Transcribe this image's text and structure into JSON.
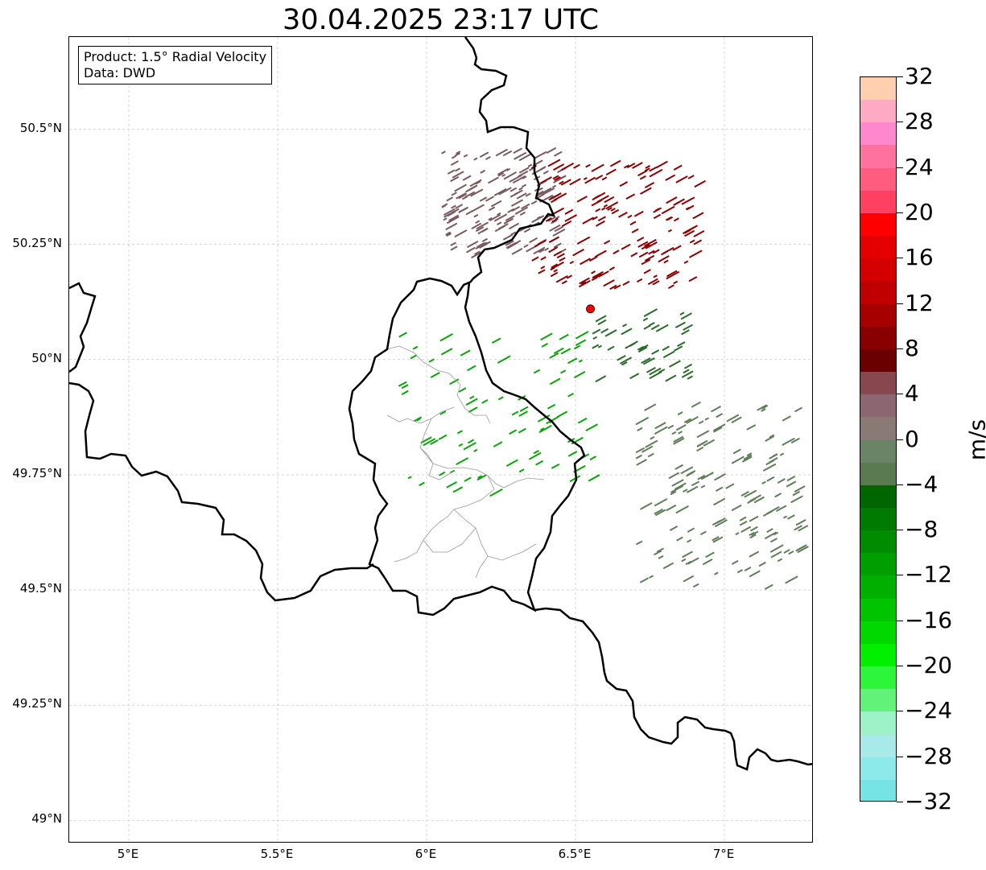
{
  "title": "30.04.2025 23:17 UTC",
  "info": {
    "line1": "Product: 1.5° Radial Velocity",
    "line2": "Data: DWD"
  },
  "lat_ticks": [
    "50.5°N",
    "50.25°N",
    "50°N",
    "49.75°N",
    "49.5°N",
    "49.25°N",
    "49°N"
  ],
  "lon_ticks": [
    "5°E",
    "5.5°E",
    "6°E",
    "6.5°E",
    "7°E"
  ],
  "extent": {
    "lon_min": 4.8,
    "lon_max": 7.3,
    "lat_min": 48.95,
    "lat_max": 50.7
  },
  "radar_site": {
    "lon": 6.55,
    "lat": 50.11,
    "color": "#ff0000"
  },
  "colorbar": {
    "unit": "m/s",
    "tick_labels": [
      "32",
      "28",
      "24",
      "20",
      "16",
      "12",
      "8",
      "4",
      "0",
      "−4",
      "−8",
      "−12",
      "−16",
      "−20",
      "−24",
      "−28",
      "−32"
    ],
    "min": -32,
    "max": 32,
    "colors_low_to_high": [
      "#76e3e5",
      "#8deaea",
      "#a8eaea",
      "#9ef2c8",
      "#62f27a",
      "#2cf53a",
      "#00f000",
      "#00d800",
      "#00c400",
      "#00b000",
      "#009e00",
      "#008c00",
      "#007a00",
      "#006600",
      "#5a7a52",
      "#6a8466",
      "#8a7a76",
      "#8c6670",
      "#86484e",
      "#6a0000",
      "#880000",
      "#a60000",
      "#c00000",
      "#d40000",
      "#e40000",
      "#ff0000",
      "#ff4060",
      "#ff5c80",
      "#ff72a0",
      "#ff88cc",
      "#ffaac4",
      "#ffcfb0"
    ]
  },
  "echo_groups": [
    {
      "name": "inbound-gray-green east",
      "color": "#5f7d58",
      "lon": [
        6.7,
        7.25
      ],
      "lat": [
        49.5,
        49.9
      ],
      "count": 160
    },
    {
      "name": "inbound-green luxembourg",
      "color": "#0aa40a",
      "lon": [
        5.9,
        6.55
      ],
      "lat": [
        49.7,
        50.05
      ],
      "count": 90
    },
    {
      "name": "outbound-mauve northwest",
      "color": "#7a5a5e",
      "lon": [
        6.05,
        6.45
      ],
      "lat": [
        50.22,
        50.45
      ],
      "count": 170
    },
    {
      "name": "outbound-darkred northeast",
      "color": "#8c0000",
      "lon": [
        6.35,
        6.9
      ],
      "lat": [
        50.15,
        50.42
      ],
      "count": 160
    },
    {
      "name": "inbound-darkgreen near-radar",
      "color": "#2a6a2a",
      "lon": [
        6.55,
        6.9
      ],
      "lat": [
        49.95,
        50.1
      ],
      "count": 50
    }
  ]
}
